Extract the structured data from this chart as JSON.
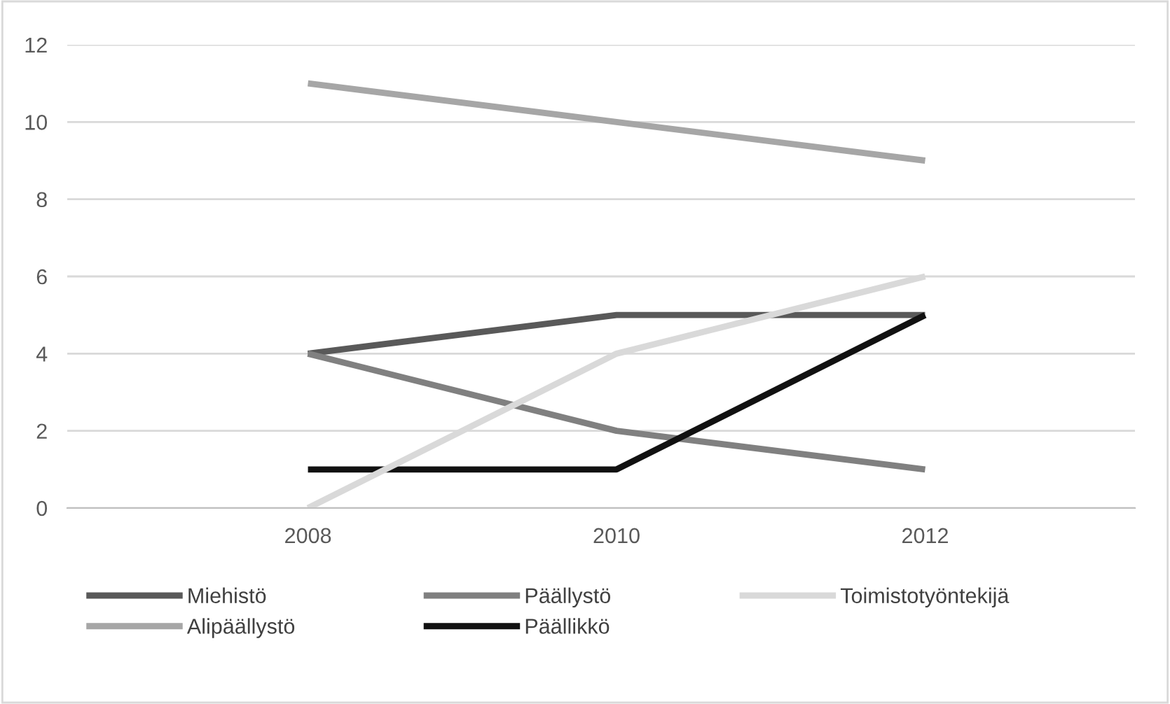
{
  "chart_data": {
    "type": "line",
    "categories": [
      "2008",
      "2010",
      "2012"
    ],
    "series": [
      {
        "name": "Miehistö",
        "color": "#595959",
        "values": [
          4,
          5,
          5
        ]
      },
      {
        "name": "Alipäällystö",
        "color": "#a6a6a6",
        "values": [
          11,
          10,
          9
        ]
      },
      {
        "name": "Päällystö",
        "color": "#808080",
        "values": [
          4,
          2,
          1
        ]
      },
      {
        "name": "Päällikkö",
        "color": "#111111",
        "values": [
          1,
          1,
          5
        ]
      },
      {
        "name": "Toimistotyöntekijä",
        "color": "#d9d9d9",
        "values": [
          0,
          4,
          6
        ]
      }
    ],
    "ylim": [
      0,
      12
    ],
    "yticks": [
      0,
      2,
      4,
      6,
      8,
      10,
      12
    ],
    "grid": "y",
    "legend": "bottom",
    "marker": "none",
    "line_style": "solid"
  }
}
